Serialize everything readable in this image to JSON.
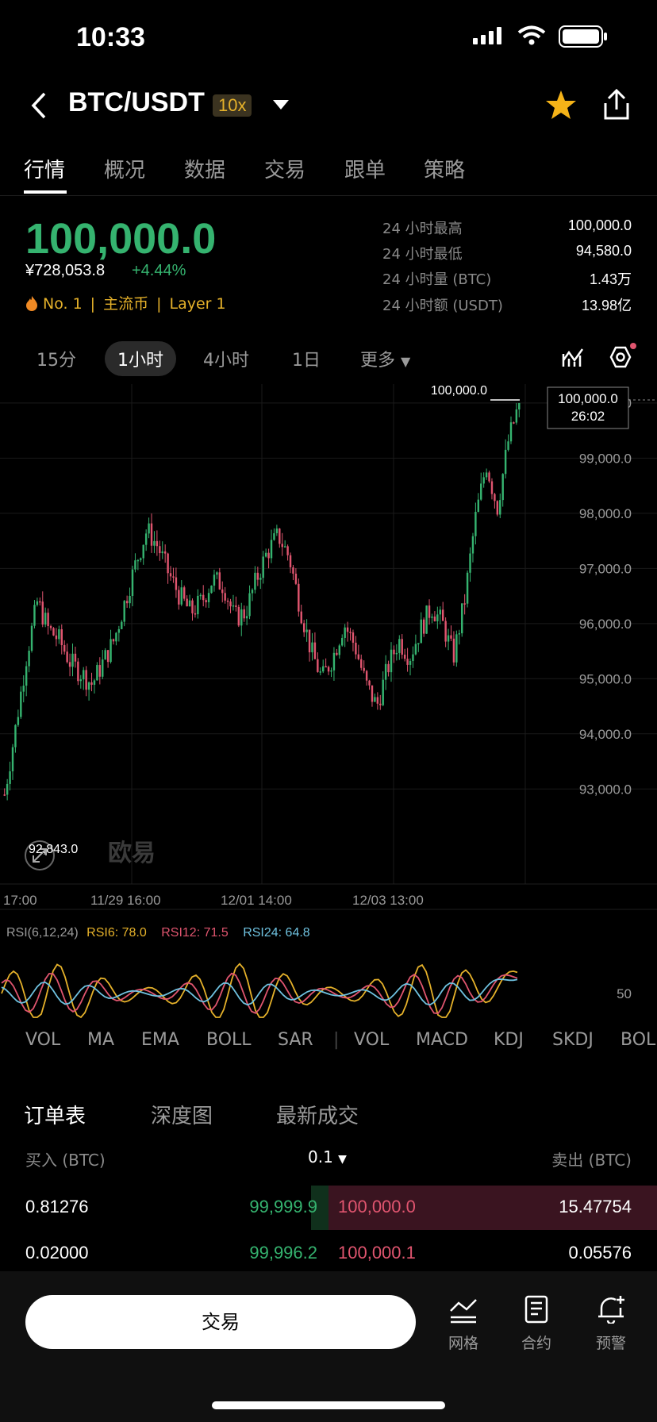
{
  "status_bar": {
    "time": "10:33"
  },
  "header": {
    "pair": "BTC/USDT",
    "leverage": "10x"
  },
  "tabs": [
    {
      "label": "行情",
      "active": true
    },
    {
      "label": "概况"
    },
    {
      "label": "数据"
    },
    {
      "label": "交易"
    },
    {
      "label": "跟单"
    },
    {
      "label": "策略"
    }
  ],
  "price": {
    "last": "100,000.0",
    "cny": "¥728,053.8",
    "change": "+4.44%"
  },
  "tags": [
    "No. 1",
    "主流币",
    "Layer 1"
  ],
  "stats": [
    {
      "label": "24 小时最高",
      "value": "100,000.0"
    },
    {
      "label": "24 小时最低",
      "value": "94,580.0"
    },
    {
      "label": "24 小时量 (BTC)",
      "value": "1.43万"
    },
    {
      "label": "24 小时额 (USDT)",
      "value": "13.98亿"
    }
  ],
  "intervals": {
    "items": [
      "15分",
      "1小时",
      "4小时",
      "1日"
    ],
    "more": "更多",
    "active": "1小时"
  },
  "chart_data": [
    {
      "type": "candlestick",
      "title": "",
      "y_ticks": [
        "100,000.0",
        "99,000.0",
        "98,000.0",
        "97,000.0",
        "96,000.0",
        "95,000.0",
        "94,000.0",
        "93,000.0"
      ],
      "x_ticks": [
        "17:00",
        "11/29 16:00",
        "12/01 14:00",
        "12/03 13:00"
      ],
      "ylim": [
        92500,
        100200
      ],
      "current_price_tag": "100,000.0",
      "countdown": "26:02",
      "high_label": "100,000.0",
      "low_label": "92,843.0",
      "watermark": "欧易",
      "up_color": "#35b36f",
      "down_color": "#e0556f",
      "close_approx": [
        92900,
        94100,
        95400,
        96400,
        95900,
        95700,
        95300,
        95100,
        94900,
        95300,
        95700,
        96400,
        97100,
        97700,
        97400,
        96900,
        96500,
        96200,
        96400,
        96800,
        96700,
        96100,
        96200,
        96800,
        97300,
        97600,
        97200,
        96300,
        95500,
        95000,
        95400,
        96000,
        95600,
        94900,
        94500,
        95200,
        95700,
        95400,
        95900,
        96300,
        96000,
        95400,
        96400,
        97900,
        98900,
        98100,
        99300,
        100000
      ]
    },
    {
      "type": "line",
      "title": "RSI(6,12,24)",
      "series": [
        {
          "name": "RSI6: 78.0",
          "color": "#e5b12a"
        },
        {
          "name": "RSI12: 71.5",
          "color": "#e0556f"
        },
        {
          "name": "RSI24: 64.8",
          "color": "#6fc2e0"
        }
      ],
      "y_ticks": [
        "50"
      ]
    }
  ],
  "indicators": [
    "VOL",
    "MA",
    "EMA",
    "BOLL",
    "SAR",
    "VOL",
    "MACD",
    "KDJ",
    "SKDJ",
    "BOL"
  ],
  "orderbook": {
    "tabs": [
      "订单表",
      "深度图",
      "最新成交"
    ],
    "bid_header": "买入 (BTC)",
    "ask_header": "卖出 (BTC)",
    "precision": "0.1",
    "rows": [
      {
        "bid_qty": "0.81276",
        "bid_price": "99,999.9",
        "ask_price": "100,000.0",
        "ask_qty": "15.47754"
      },
      {
        "bid_qty": "0.02000",
        "bid_price": "99,996.2",
        "ask_price": "100,000.1",
        "ask_qty": "0.05576"
      }
    ]
  },
  "bottom_bar": {
    "trade": "交易",
    "items": [
      "网格",
      "合约",
      "预警"
    ]
  }
}
